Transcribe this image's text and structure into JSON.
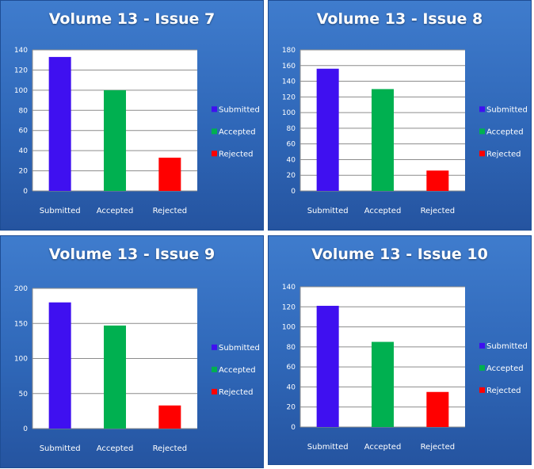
{
  "chart_data": [
    {
      "type": "bar",
      "title": "Volume 13 - Issue 7",
      "categories": [
        "Submitted",
        "Accepted",
        "Rejected"
      ],
      "values": [
        133,
        100,
        33
      ],
      "colors": [
        "#3f10f0",
        "#00b050",
        "#ff0000"
      ],
      "ylim": [
        0,
        140
      ],
      "yticks": [
        "0",
        "20",
        "40",
        "60",
        "80",
        "100",
        "120",
        "140"
      ],
      "legend": [
        "Submitted",
        "Accepted",
        "Rejected"
      ],
      "legend_position": "right",
      "grid": true
    },
    {
      "type": "bar",
      "title": "Volume 13 - Issue 8",
      "categories": [
        "Submitted",
        "Accepted",
        "Rejected"
      ],
      "values": [
        156,
        130,
        26
      ],
      "colors": [
        "#3f10f0",
        "#00b050",
        "#ff0000"
      ],
      "ylim": [
        0,
        180
      ],
      "yticks": [
        "0",
        "20",
        "40",
        "60",
        "80",
        "100",
        "120",
        "140",
        "160",
        "180"
      ],
      "legend": [
        "Submitted",
        "Accepted",
        "Rejected"
      ],
      "legend_position": "right",
      "grid": true
    },
    {
      "type": "bar",
      "title": "Volume 13 - Issue 9",
      "categories": [
        "Submitted",
        "Accepted",
        "Rejected"
      ],
      "values": [
        180,
        147,
        33
      ],
      "colors": [
        "#3f10f0",
        "#00b050",
        "#ff0000"
      ],
      "ylim": [
        0,
        200
      ],
      "yticks": [
        "0",
        "50",
        "100",
        "150",
        "200"
      ],
      "legend": [
        "Submitted",
        "Accepted",
        "Rejected"
      ],
      "legend_position": "right",
      "grid": true
    },
    {
      "type": "bar",
      "title": "Volume 13 - Issue 10",
      "categories": [
        "Submitted",
        "Accepted",
        "Rejected"
      ],
      "values": [
        121,
        85,
        35
      ],
      "colors": [
        "#3f10f0",
        "#00b050",
        "#ff0000"
      ],
      "ylim": [
        0,
        140
      ],
      "yticks": [
        "0",
        "20",
        "40",
        "60",
        "80",
        "100",
        "120",
        "140"
      ],
      "legend": [
        "Submitted",
        "Accepted",
        "Rejected"
      ],
      "legend_position": "right",
      "grid": true
    }
  ]
}
